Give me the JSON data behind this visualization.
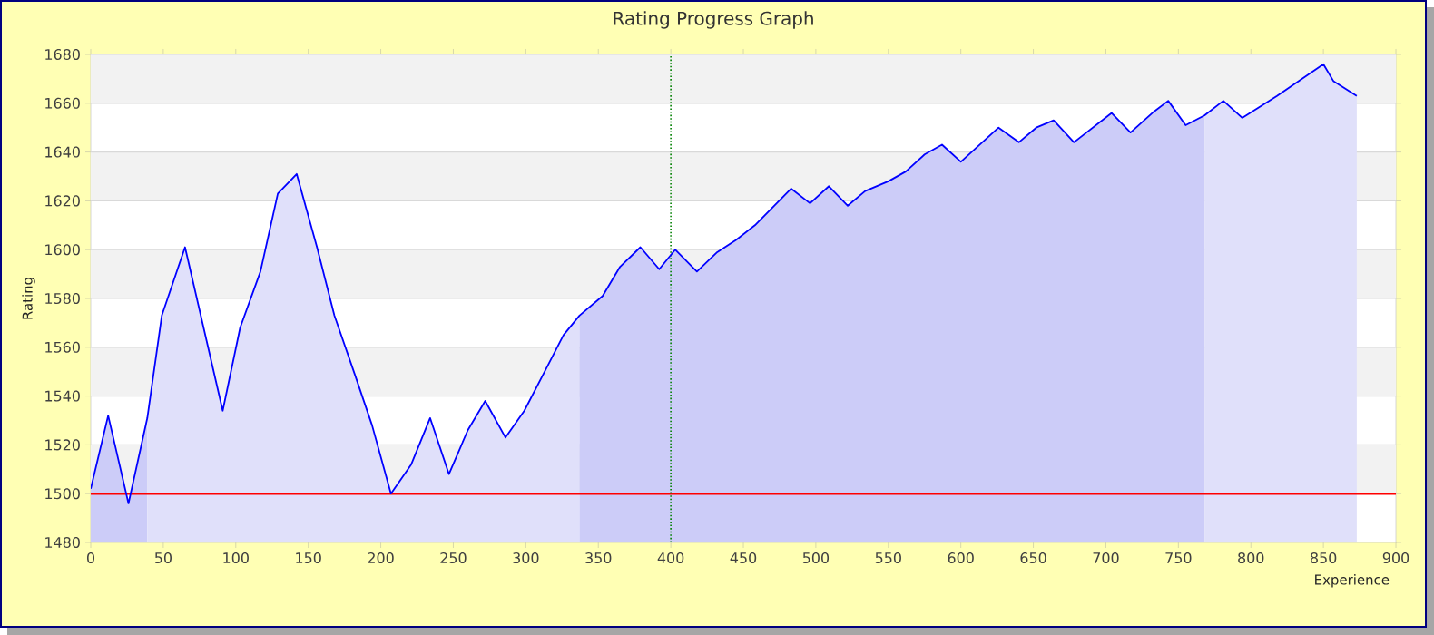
{
  "chart_data": {
    "type": "line",
    "title": "Rating Progress Graph",
    "xlabel": "Experience",
    "ylabel": "Rating",
    "xlim": [
      0,
      900
    ],
    "ylim": [
      1480,
      1680
    ],
    "xticks": [
      0,
      50,
      100,
      150,
      200,
      250,
      300,
      350,
      400,
      450,
      500,
      550,
      600,
      650,
      700,
      750,
      800,
      850,
      900
    ],
    "yticks": [
      1480,
      1500,
      1520,
      1540,
      1560,
      1580,
      1600,
      1620,
      1640,
      1660,
      1680
    ],
    "grid": "y",
    "marker": "none",
    "line_style": "solid",
    "series": [
      {
        "type": "area",
        "color": "#ccccf8",
        "x": [
          0,
          12,
          26,
          39
        ],
        "values": [
          1502,
          1532,
          1496,
          1531
        ]
      },
      {
        "type": "area",
        "color": "#e0e0fa",
        "x": [
          39,
          49,
          65,
          91,
          103,
          117,
          129,
          142,
          156,
          168,
          182,
          194,
          207,
          221,
          234,
          247,
          260,
          272,
          286,
          299,
          313,
          326,
          337
        ],
        "values": [
          1531,
          1573,
          1601,
          1534,
          1568,
          1591,
          1623,
          1631,
          1601,
          1573,
          1549,
          1528,
          1500,
          1512,
          1531,
          1508,
          1526,
          1538,
          1523,
          1534,
          1550,
          1565,
          1573
        ]
      },
      {
        "type": "area",
        "color": "#ccccf8",
        "x": [
          337,
          353,
          365,
          379,
          392,
          403,
          418,
          432,
          445,
          458,
          483,
          496,
          509,
          522,
          534,
          550,
          562,
          575,
          587,
          600,
          626,
          640,
          652,
          664,
          678,
          704,
          717,
          732,
          743,
          755,
          768
        ],
        "values": [
          1573,
          1581,
          1593,
          1601,
          1592,
          1600,
          1591,
          1599,
          1604,
          1610,
          1625,
          1619,
          1626,
          1618,
          1624,
          1628,
          1632,
          1639,
          1643,
          1636,
          1650,
          1644,
          1650,
          1653,
          1644,
          1656,
          1648,
          1656,
          1661,
          1651,
          1655
        ]
      },
      {
        "type": "area",
        "color": "#e0e0fa",
        "x": [
          768,
          781,
          794,
          818,
          850,
          857,
          873
        ],
        "values": [
          1655,
          1661,
          1654,
          1663,
          1676,
          1669,
          1663
        ]
      },
      {
        "color": "#0000ff",
        "x": [
          0,
          12,
          26,
          39,
          49,
          65,
          91,
          103,
          117,
          129,
          142,
          156,
          168,
          182,
          194,
          207,
          221,
          234,
          247,
          260,
          272,
          286,
          299,
          313,
          326,
          337,
          353,
          365,
          379,
          392,
          403,
          418,
          432,
          445,
          458,
          483,
          496,
          509,
          522,
          534,
          550,
          562,
          575,
          587,
          600,
          626,
          640,
          652,
          664,
          678,
          704,
          717,
          732,
          743,
          755,
          768,
          781,
          794,
          818,
          850,
          857,
          873
        ],
        "values": [
          1502,
          1532,
          1496,
          1531,
          1573,
          1601,
          1534,
          1568,
          1591,
          1623,
          1631,
          1601,
          1573,
          1549,
          1528,
          1500,
          1512,
          1531,
          1508,
          1526,
          1538,
          1523,
          1534,
          1550,
          1565,
          1573,
          1581,
          1593,
          1601,
          1592,
          1600,
          1591,
          1599,
          1604,
          1610,
          1625,
          1619,
          1626,
          1618,
          1624,
          1628,
          1632,
          1639,
          1643,
          1636,
          1650,
          1644,
          1650,
          1653,
          1644,
          1656,
          1648,
          1656,
          1661,
          1651,
          1655,
          1661,
          1654,
          1663,
          1676,
          1669,
          1663
        ]
      }
    ],
    "ref_lines": [
      {
        "axis": "y",
        "value": 1500,
        "color": "#ff0000",
        "line_style": "solid"
      },
      {
        "axis": "x",
        "value": 400,
        "color": "#008000",
        "line_style": "dotted"
      }
    ]
  }
}
